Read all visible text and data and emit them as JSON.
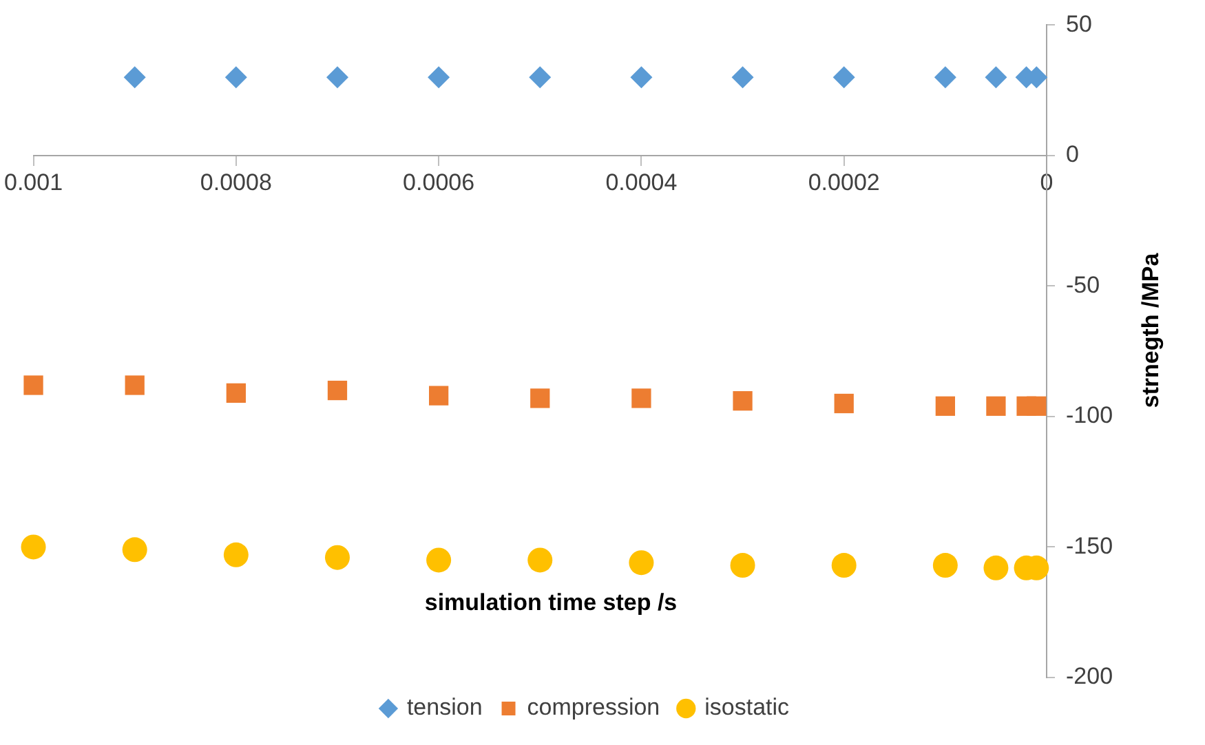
{
  "chart_data": {
    "type": "scatter",
    "xlabel": "simulation time step /s",
    "ylabel": "strnegth /MPa",
    "x": [
      0.001,
      0.0009,
      0.0008,
      0.0007,
      0.0006,
      0.0005,
      0.0004,
      0.0003,
      0.0002,
      0.0001,
      5e-05,
      2e-05,
      1e-05
    ],
    "series": [
      {
        "name": "tension",
        "color": "#5b9bd5",
        "marker": "diamond",
        "values": [
          null,
          30,
          30,
          30,
          30,
          30,
          30,
          30,
          30,
          30,
          30,
          30,
          30
        ]
      },
      {
        "name": "compression",
        "color": "#ed7d31",
        "marker": "square",
        "values": [
          -88,
          -88,
          -91,
          -90,
          -92,
          -93,
          -93,
          -94,
          -95,
          -96,
          -96,
          -96,
          -96
        ]
      },
      {
        "name": "isostatic",
        "color": "#ffc000",
        "marker": "circle",
        "values": [
          -150,
          -151,
          -153,
          -154,
          -155,
          -155,
          -156,
          -157,
          -157,
          -157,
          -158,
          -158,
          -158
        ]
      }
    ],
    "xlim": [
      0.001,
      0
    ],
    "xticks": [
      0.001,
      0.0008,
      0.0006,
      0.0004,
      0.0002,
      0
    ],
    "ylim": [
      -200,
      50
    ],
    "yticks": [
      -200,
      -150,
      -100,
      -50,
      0,
      50
    ],
    "grid": false,
    "legend": "bottom"
  }
}
